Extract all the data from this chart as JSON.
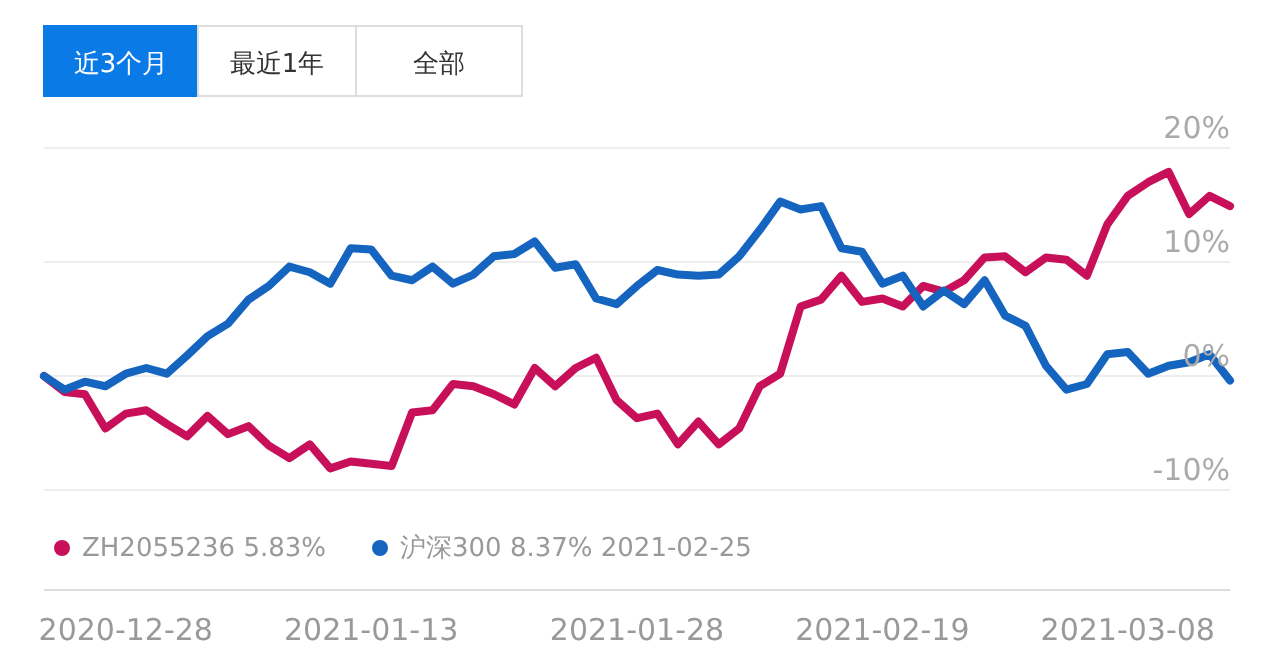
{
  "chart_data": {
    "type": "line",
    "annotations": [
      "近3个月",
      "最近1年",
      "全部"
    ],
    "categories": [
      null,
      null,
      null,
      null,
      "2020-12-28",
      null,
      null,
      null,
      null,
      null,
      null,
      null,
      null,
      null,
      null,
      null,
      "2021-01-13",
      null,
      null,
      null,
      null,
      null,
      null,
      null,
      null,
      null,
      null,
      null,
      null,
      "2021-01-28",
      null,
      null,
      null,
      null,
      null,
      null,
      null,
      null,
      null,
      null,
      null,
      "2021-02-19",
      null,
      null,
      null,
      null,
      null,
      null,
      null,
      null,
      null,
      null,
      null,
      "2021-03-08",
      null,
      null,
      null,
      null,
      null
    ],
    "series": [
      {
        "name": "ZH2055236 5.83%",
        "color": "#c8105a",
        "values": [
          0,
          -1.4,
          -1.6,
          -4.6,
          -3.3,
          -3.0,
          -4.2,
          -5.3,
          -3.5,
          -5.1,
          -4.4,
          -6.1,
          -7.2,
          -6.0,
          -8.1,
          -7.5,
          -7.7,
          -7.9,
          -3.2,
          -3.0,
          -0.7,
          -0.9,
          -1.6,
          -2.5,
          0.7,
          -0.9,
          0.7,
          1.6,
          -2.1,
          -3.7,
          -3.3,
          -6.0,
          -4.0,
          -6.0,
          -4.6,
          -0.9,
          0.2,
          6.1,
          6.7,
          8.8,
          6.5,
          6.8,
          6.1,
          7.9,
          7.4,
          8.4,
          10.4,
          10.5,
          9.1,
          10.4,
          10.2,
          8.8,
          13.3,
          15.8,
          17.0,
          17.9,
          14.2,
          15.8,
          14.9
        ]
      },
      {
        "name": "沪深300 8.37% 2021-02-25",
        "color": "#1565c0",
        "values": [
          0,
          -1.2,
          -0.5,
          -0.9,
          0.2,
          0.7,
          0.2,
          1.8,
          3.5,
          4.6,
          6.7,
          7.9,
          9.6,
          9.1,
          8.1,
          11.2,
          11.1,
          8.8,
          8.4,
          9.6,
          8.1,
          8.9,
          10.5,
          10.7,
          11.8,
          9.5,
          9.8,
          6.8,
          6.3,
          7.9,
          9.3,
          8.9,
          8.8,
          8.9,
          10.5,
          12.8,
          15.3,
          14.6,
          14.9,
          11.2,
          10.9,
          8.1,
          8.8,
          6.1,
          7.5,
          6.3,
          8.4,
          5.3,
          4.4,
          0.9,
          -1.2,
          -0.7,
          1.9,
          2.1,
          0.2,
          0.9,
          1.2,
          1.9,
          -0.4
        ]
      }
    ],
    "ylim": [
      -10,
      20
    ],
    "yticks": [
      {
        "value": -10,
        "label": "-10%"
      },
      {
        "value": 0,
        "label": "0%"
      },
      {
        "value": 10,
        "label": "10%"
      },
      {
        "value": 20,
        "label": "20%"
      }
    ],
    "grid": "y",
    "legend": "bottom",
    "marker": "none",
    "line_style": "solid"
  }
}
